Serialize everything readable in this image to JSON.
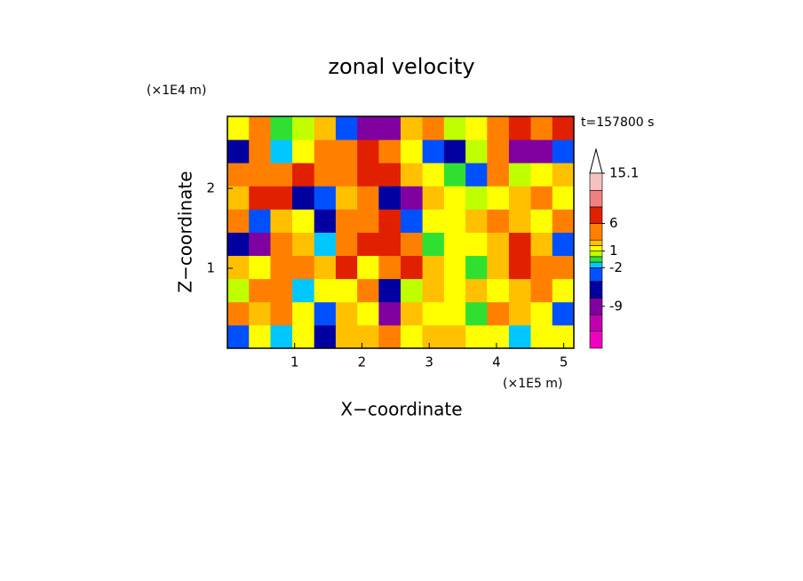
{
  "chart_data": {
    "type": "contour",
    "title": "zonal velocity",
    "x_label": "X−coordinate",
    "y_label": "Z−coordinate",
    "x_unit": "(×1E5 m)",
    "y_unit": "(×1E4 m)",
    "annotation": "t=157800 s",
    "xlim": [
      0,
      5.15
    ],
    "ylim": [
      0,
      2.9
    ],
    "xticks": [
      1,
      2,
      3,
      4,
      5
    ],
    "yticks": [
      1,
      2
    ],
    "x": [
      0.16,
      0.48,
      0.8,
      1.13,
      1.45,
      1.77,
      2.09,
      2.41,
      2.74,
      3.06,
      3.38,
      3.7,
      4.02,
      4.35,
      4.67,
      4.99
    ],
    "y": [
      2.75,
      2.46,
      2.17,
      1.88,
      1.59,
      1.3,
      1.01,
      0.72,
      0.43,
      0.14
    ],
    "values": [
      [
        1,
        3,
        -1,
        0,
        2,
        -3,
        -8,
        -10,
        2,
        3,
        0,
        1,
        4,
        6,
        3,
        6
      ],
      [
        -7,
        3,
        -2,
        1,
        3,
        5,
        6,
        3,
        1,
        -3,
        -5,
        0,
        4,
        -9,
        -8,
        -3
      ],
      [
        5,
        4,
        3,
        6,
        3,
        5,
        7,
        6,
        2,
        1,
        -1,
        -3,
        3,
        0,
        1,
        2
      ],
      [
        2,
        6,
        7,
        -5,
        -3,
        2,
        3,
        -5,
        -9,
        2,
        1,
        0,
        1,
        2,
        5,
        1
      ],
      [
        3,
        -4,
        2,
        1,
        -6,
        3,
        5,
        7,
        -3,
        1,
        1,
        2,
        3,
        2,
        1,
        4
      ],
      [
        -5,
        -9,
        3,
        2,
        -2,
        5,
        7,
        6,
        3,
        -1,
        1,
        1,
        2,
        6,
        2,
        -3
      ],
      [
        2,
        1,
        4,
        3,
        2,
        6,
        1,
        5,
        7,
        2,
        1,
        -1,
        2,
        6,
        4,
        3
      ],
      [
        0,
        4,
        3,
        -2,
        1,
        1,
        3,
        -7,
        0,
        2,
        1,
        2,
        1,
        2,
        3,
        1
      ],
      [
        5,
        2,
        3,
        1,
        -3,
        2,
        1,
        -9,
        2,
        1,
        1,
        -1,
        3,
        2,
        1,
        -3
      ],
      [
        -3,
        1,
        -2,
        1,
        -6,
        2,
        2,
        3,
        1,
        2,
        2,
        1,
        1,
        -2,
        1,
        1
      ]
    ],
    "colorbar": {
      "levels": [
        -16.6,
        -13.5,
        -10.5,
        -7.5,
        -4.5,
        -2,
        -1,
        0,
        1,
        2,
        3,
        6,
        9,
        12,
        15.1
      ],
      "colors": [
        "#f000c0",
        "#c000b0",
        "#8000a0",
        "#0000a0",
        "#0050ff",
        "#00c8ff",
        "#30e030",
        "#c0ff00",
        "#ffff00",
        "#ffc000",
        "#ff8000",
        "#e02000",
        "#f08080",
        "#f8c0c0"
      ],
      "ticks": [
        15.1,
        6,
        1,
        -2,
        -9
      ]
    }
  }
}
